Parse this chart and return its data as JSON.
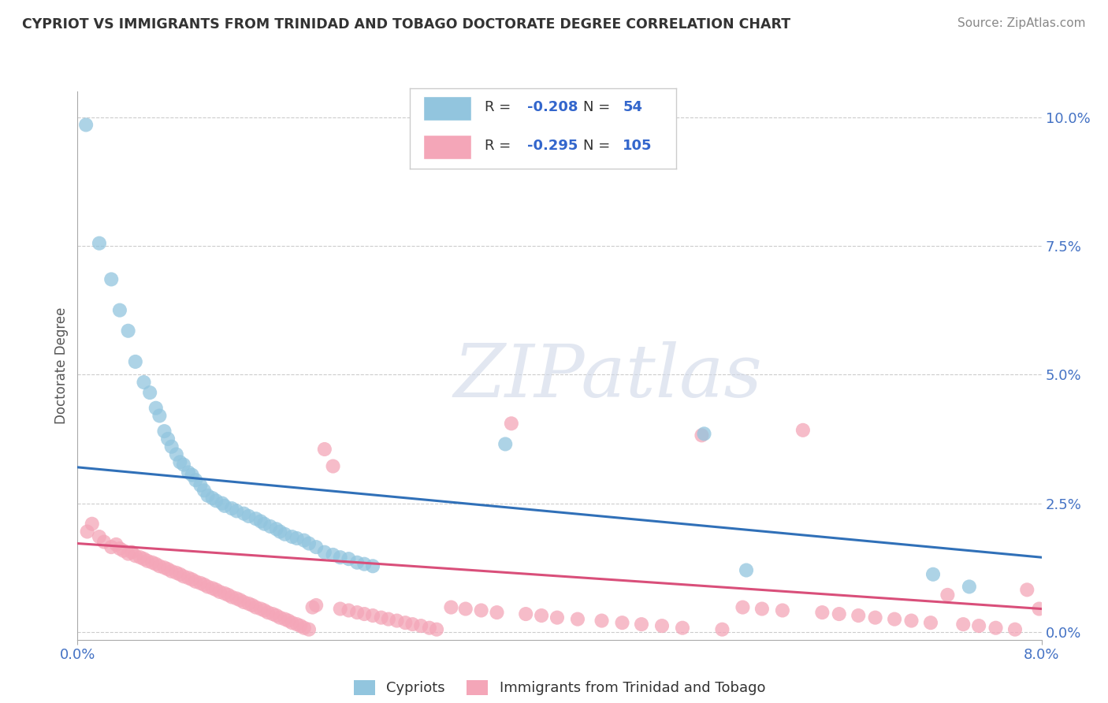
{
  "title": "CYPRIOT VS IMMIGRANTS FROM TRINIDAD AND TOBAGO DOCTORATE DEGREE CORRELATION CHART",
  "source": "Source: ZipAtlas.com",
  "ylabel": "Doctorate Degree",
  "xmin": 0.0,
  "xmax": 8.0,
  "ymin": -0.15,
  "ymax": 10.5,
  "ytick_vals": [
    0.0,
    2.5,
    5.0,
    7.5,
    10.0
  ],
  "ytick_labels": [
    "0.0%",
    "2.5%",
    "5.0%",
    "7.5%",
    "10.0%"
  ],
  "xtick_vals": [
    0.0,
    8.0
  ],
  "xtick_labels": [
    "0.0%",
    "8.0%"
  ],
  "blue_R": -0.208,
  "blue_N": 54,
  "pink_R": -0.295,
  "pink_N": 105,
  "legend_label_blue": "Cypriots",
  "legend_label_pink": "Immigrants from Trinidad and Tobago",
  "blue_color": "#92c5de",
  "pink_color": "#f4a6b8",
  "blue_line_color": "#3070b8",
  "pink_line_color": "#d94f7a",
  "blue_line_start": 3.2,
  "blue_line_end": 1.45,
  "pink_line_start": 1.72,
  "pink_line_end": 0.45,
  "watermark_text": "ZIPatlas",
  "blue_x": [
    0.07,
    0.18,
    0.28,
    0.35,
    0.42,
    0.48,
    0.55,
    0.6,
    0.65,
    0.68,
    0.72,
    0.75,
    0.78,
    0.82,
    0.85,
    0.88,
    0.92,
    0.95,
    0.98,
    1.02,
    1.05,
    1.08,
    1.12,
    1.15,
    1.2,
    1.22,
    1.28,
    1.32,
    1.38,
    1.42,
    1.48,
    1.52,
    1.55,
    1.6,
    1.65,
    1.68,
    1.72,
    1.78,
    1.82,
    1.88,
    1.92,
    1.98,
    2.05,
    2.12,
    2.18,
    2.25,
    2.32,
    2.38,
    2.45,
    3.55,
    5.2,
    5.55,
    7.1,
    7.4
  ],
  "blue_y": [
    9.85,
    7.55,
    6.85,
    6.25,
    5.85,
    5.25,
    4.85,
    4.65,
    4.35,
    4.2,
    3.9,
    3.75,
    3.6,
    3.45,
    3.3,
    3.25,
    3.1,
    3.05,
    2.95,
    2.85,
    2.75,
    2.65,
    2.6,
    2.55,
    2.5,
    2.45,
    2.4,
    2.35,
    2.3,
    2.25,
    2.2,
    2.15,
    2.1,
    2.05,
    2.0,
    1.95,
    1.9,
    1.85,
    1.82,
    1.78,
    1.72,
    1.65,
    1.55,
    1.5,
    1.45,
    1.42,
    1.35,
    1.32,
    1.28,
    3.65,
    3.85,
    1.2,
    1.12,
    0.88
  ],
  "pink_x": [
    0.08,
    0.12,
    0.18,
    0.22,
    0.28,
    0.32,
    0.35,
    0.38,
    0.42,
    0.45,
    0.48,
    0.52,
    0.55,
    0.58,
    0.62,
    0.65,
    0.68,
    0.72,
    0.75,
    0.78,
    0.82,
    0.85,
    0.88,
    0.92,
    0.95,
    0.98,
    1.02,
    1.05,
    1.08,
    1.12,
    1.15,
    1.18,
    1.22,
    1.25,
    1.28,
    1.32,
    1.35,
    1.38,
    1.42,
    1.45,
    1.48,
    1.52,
    1.55,
    1.58,
    1.62,
    1.65,
    1.68,
    1.72,
    1.75,
    1.78,
    1.82,
    1.85,
    1.88,
    1.92,
    1.95,
    1.98,
    2.05,
    2.12,
    2.18,
    2.25,
    2.32,
    2.38,
    2.45,
    2.52,
    2.58,
    2.65,
    2.72,
    2.78,
    2.85,
    2.92,
    2.98,
    3.1,
    3.22,
    3.35,
    3.48,
    3.6,
    3.72,
    3.85,
    3.98,
    4.15,
    4.35,
    4.52,
    4.68,
    4.85,
    5.02,
    5.18,
    5.35,
    5.52,
    5.68,
    5.85,
    6.02,
    6.18,
    6.32,
    6.48,
    6.62,
    6.78,
    6.92,
    7.08,
    7.22,
    7.35,
    7.48,
    7.62,
    7.78,
    7.88,
    7.98
  ],
  "pink_y": [
    1.95,
    2.1,
    1.85,
    1.75,
    1.65,
    1.7,
    1.62,
    1.58,
    1.52,
    1.55,
    1.48,
    1.45,
    1.42,
    1.38,
    1.35,
    1.32,
    1.28,
    1.25,
    1.22,
    1.18,
    1.15,
    1.12,
    1.08,
    1.05,
    1.02,
    0.98,
    0.95,
    0.92,
    0.88,
    0.85,
    0.82,
    0.78,
    0.75,
    0.72,
    0.68,
    0.65,
    0.62,
    0.58,
    0.55,
    0.52,
    0.48,
    0.45,
    0.42,
    0.38,
    0.35,
    0.32,
    0.28,
    0.25,
    0.22,
    0.18,
    0.15,
    0.12,
    0.08,
    0.05,
    0.48,
    0.52,
    3.55,
    3.22,
    0.45,
    0.42,
    0.38,
    0.35,
    0.32,
    0.28,
    0.25,
    0.22,
    0.18,
    0.15,
    0.12,
    0.08,
    0.05,
    0.48,
    0.45,
    0.42,
    0.38,
    4.05,
    0.35,
    0.32,
    0.28,
    0.25,
    0.22,
    0.18,
    0.15,
    0.12,
    0.08,
    3.82,
    0.05,
    0.48,
    0.45,
    0.42,
    3.92,
    0.38,
    0.35,
    0.32,
    0.28,
    0.25,
    0.22,
    0.18,
    0.72,
    0.15,
    0.12,
    0.08,
    0.05,
    0.82,
    0.45
  ]
}
